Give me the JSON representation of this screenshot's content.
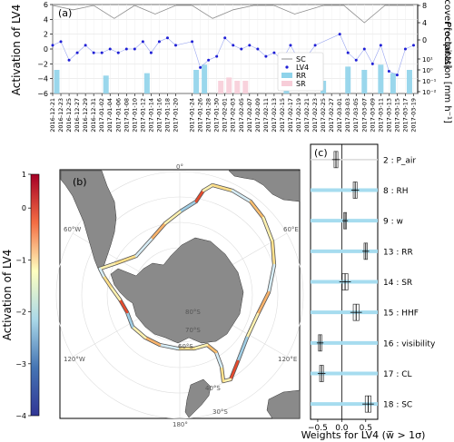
{
  "panel_a": {
    "label": "(a)",
    "ylabel_left": "Activation of LV4",
    "ylabel_right_top": "Sky cover\n[octants]",
    "ylabel_right_bottom": "Precipitation\n[mm h⁻¹]",
    "left_ticks": [
      "6",
      "4",
      "2",
      "0",
      "−2",
      "−4",
      "−6"
    ],
    "right_sky_ticks": [
      "8",
      "4",
      "0"
    ],
    "right_precip_ticks": [
      "10¹",
      "10⁰",
      "10⁻¹",
      "10⁻²"
    ],
    "date_ticks": [
      "2016-12-21",
      "2016-12-23",
      "2016-12-25",
      "2016-12-27",
      "2016-12-29",
      "2016-12-31",
      "2017-01-02",
      "2017-01-04",
      "2017-01-06",
      "2017-01-08",
      "2017-01-10",
      "2017-01-12",
      "2017-01-14",
      "2017-01-16",
      "2017-01-18",
      "2017-01-20",
      "2017-01-24",
      "2017-01-26",
      "2017-01-28",
      "2017-01-30",
      "2017-02-01",
      "2017-02-03",
      "2017-02-05",
      "2017-02-07",
      "2017-02-09",
      "2017-02-11",
      "2017-02-13",
      "2017-02-15",
      "2017-02-17",
      "2017-02-19",
      "2017-02-21",
      "2017-02-23",
      "2017-02-25",
      "2017-02-27",
      "2017-03-01",
      "2017-03-03",
      "2017-03-05",
      "2017-03-07",
      "2017-03-09",
      "2017-03-11",
      "2017-03-13",
      "2017-03-15",
      "2017-03-17",
      "2017-03-19"
    ],
    "legend": [
      {
        "label": "SC",
        "kind": "line",
        "color": "#8c8c8c"
      },
      {
        "label": "LV4",
        "kind": "dot",
        "color": "#1f1fd6"
      },
      {
        "label": "RR",
        "kind": "patch",
        "color": "#8fd3ea"
      },
      {
        "label": "SR",
        "kind": "patch",
        "color": "#f7cdd8"
      }
    ]
  },
  "panel_b": {
    "label": "(b)",
    "colorbar_label": "Activation of LV4",
    "colorbar_ticks": [
      "1",
      "0",
      "−1",
      "−2",
      "−3",
      "−4"
    ],
    "map_labels": [
      "0°",
      "60°W",
      "60°E",
      "120°W",
      "120°E",
      "180°",
      "30°S",
      "40°S",
      "60°S",
      "70°S",
      "80°S"
    ]
  },
  "panel_c": {
    "label": "(c)",
    "xlabel": "Weights for LV4 (w̅ > 1σ)",
    "xticks": [
      "−0.5",
      "0.0",
      "0.5"
    ]
  },
  "chart_data": [
    {
      "type": "line",
      "panel": "a",
      "series": [
        {
          "name": "SC",
          "y_axis": "right_top",
          "x": [
            "2016-12-21",
            "2016-12-26",
            "2016-12-31",
            "2017-01-05",
            "2017-01-10",
            "2017-01-15",
            "2017-01-20",
            "2017-01-24",
            "2017-01-29",
            "2017-02-03",
            "2017-02-08",
            "2017-02-13",
            "2017-02-18",
            "2017-02-25",
            "2017-03-02",
            "2017-03-07",
            "2017-03-12",
            "2017-03-19"
          ],
          "y": [
            8,
            7,
            8,
            5,
            8,
            6,
            8,
            8,
            5,
            7,
            8,
            8,
            6,
            8,
            8,
            4,
            8,
            8
          ]
        },
        {
          "name": "LV4",
          "y_axis": "left",
          "x": [
            "2016-12-21",
            "2016-12-23",
            "2016-12-25",
            "2016-12-27",
            "2016-12-29",
            "2016-12-31",
            "2017-01-02",
            "2017-01-04",
            "2017-01-06",
            "2017-01-08",
            "2017-01-10",
            "2017-01-12",
            "2017-01-14",
            "2017-01-16",
            "2017-01-18",
            "2017-01-20",
            "2017-01-24",
            "2017-01-26",
            "2017-01-28",
            "2017-01-30",
            "2017-02-01",
            "2017-02-03",
            "2017-02-05",
            "2017-02-07",
            "2017-02-09",
            "2017-02-11",
            "2017-02-13",
            "2017-02-15",
            "2017-02-17",
            "2017-02-19",
            "2017-02-21",
            "2017-02-23",
            "2017-03-01",
            "2017-03-03",
            "2017-03-05",
            "2017-03-07",
            "2017-03-09",
            "2017-03-11",
            "2017-03-13",
            "2017-03-15",
            "2017-03-17",
            "2017-03-19"
          ],
          "y": [
            0.5,
            1.0,
            -1.5,
            -0.5,
            0.5,
            -0.5,
            -0.5,
            0.0,
            -0.5,
            0.0,
            0.0,
            1.0,
            -0.5,
            1.0,
            1.5,
            0.5,
            1.0,
            -2.5,
            -1.5,
            -1.0,
            1.5,
            0.5,
            0.0,
            0.5,
            0.0,
            -1.0,
            -0.5,
            -1.5,
            0.5,
            -1.5,
            -1.0,
            0.5,
            2.0,
            -0.5,
            -1.5,
            0.0,
            -2.0,
            0.5,
            -3.0,
            -3.5,
            0.0,
            0.5
          ]
        },
        {
          "name": "RR",
          "type": "bar",
          "y_axis": "right_bottom",
          "x": [
            "2016-12-22",
            "2017-01-03",
            "2017-01-13",
            "2017-01-25",
            "2017-01-27",
            "2017-02-16",
            "2017-02-25",
            "2017-03-03",
            "2017-03-07",
            "2017-03-11",
            "2017-03-14",
            "2017-03-18"
          ],
          "y": [
            1,
            0.3,
            0.5,
            1,
            3,
            0.3,
            0.1,
            2,
            1,
            3,
            0.5,
            1
          ]
        },
        {
          "name": "SR",
          "type": "bar",
          "y_axis": "right_bottom",
          "x": [
            "2017-01-31",
            "2017-02-02",
            "2017-02-04",
            "2017-02-06"
          ],
          "y": [
            0.1,
            0.2,
            0.1,
            0.1
          ]
        }
      ],
      "ylim_left": [
        -6,
        6
      ],
      "ylim_sky": [
        0,
        8
      ],
      "ylim_precip_log": [
        0.01,
        10
      ],
      "grid": true,
      "legend_position": "lower-right"
    },
    {
      "type": "scatter",
      "panel": "c",
      "title": "",
      "xlabel": "Weights for LV4 (w̅ > 1σ)",
      "xlim": [
        -0.65,
        0.75
      ],
      "categories": [
        "2 : P_air",
        "8 : RH",
        "9 : w",
        "13 : RR",
        "14 : SR",
        "15 : HHF",
        "16 : visibility",
        "17 : CL",
        "18 : SC"
      ],
      "values": [
        -0.12,
        0.28,
        0.07,
        0.5,
        0.07,
        0.3,
        -0.45,
        -0.42,
        0.55
      ],
      "error": [
        0.08,
        0.08,
        0.06,
        0.07,
        0.12,
        0.12,
        0.07,
        0.08,
        0.12
      ],
      "highlighted": [
        false,
        true,
        true,
        true,
        true,
        true,
        true,
        true,
        true
      ]
    }
  ]
}
